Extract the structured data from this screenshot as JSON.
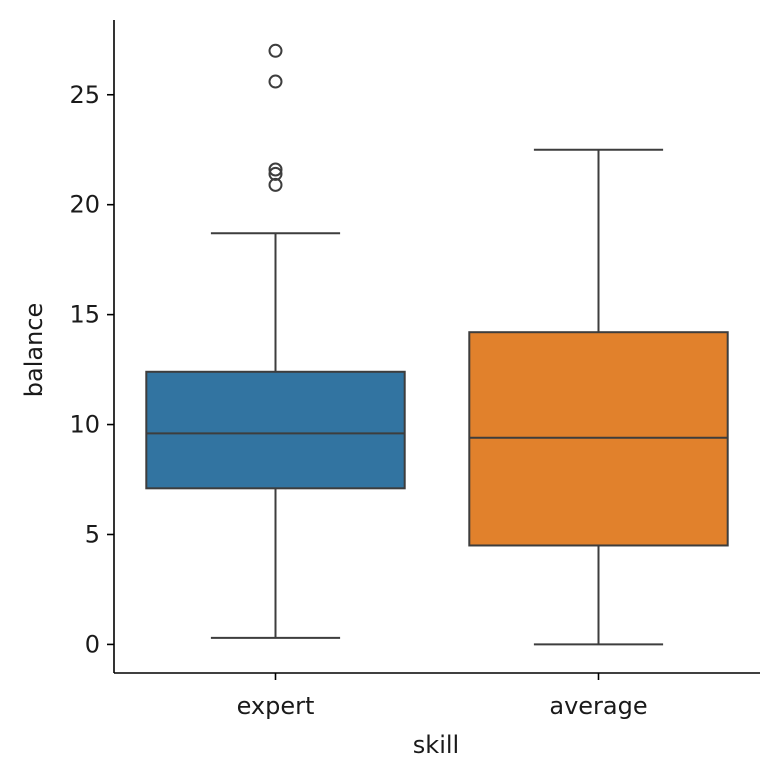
{
  "chart_data": {
    "type": "box",
    "title": "",
    "xlabel": "skill",
    "ylabel": "balance",
    "categories": [
      "expert",
      "average"
    ],
    "ylim": [
      -1.3,
      28.4
    ],
    "yticks": [
      0,
      5,
      10,
      15,
      20,
      25
    ],
    "grid": false,
    "legend": "none",
    "boxes": [
      {
        "category": "expert",
        "color": "#3274a1",
        "whisker_low": 0.3,
        "q1": 7.1,
        "median": 9.6,
        "q3": 12.4,
        "whisker_high": 18.7,
        "outliers": [
          27.0,
          25.6,
          21.6,
          21.4,
          20.9
        ]
      },
      {
        "category": "average",
        "color": "#e1812c",
        "whisker_low": 0.0,
        "q1": 4.5,
        "median": 9.4,
        "q3": 14.2,
        "whisker_high": 22.5,
        "outliers": []
      }
    ]
  }
}
